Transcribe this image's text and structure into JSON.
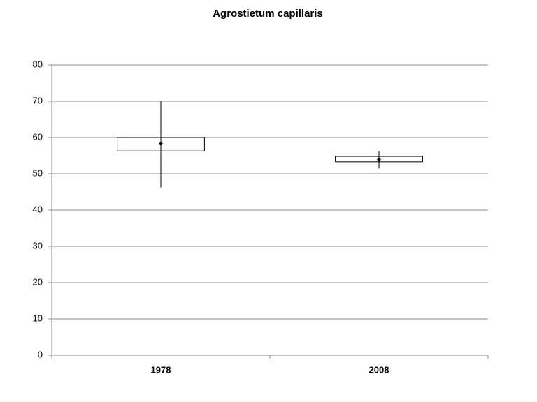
{
  "chart_data": {
    "type": "box",
    "title": "Agrostietum capillaris",
    "categories": [
      "1978",
      "2008"
    ],
    "min": [
      46.2,
      51.5
    ],
    "q1": [
      56.3,
      53.3
    ],
    "mean": [
      58.3,
      54.0
    ],
    "q3": [
      60,
      54.8
    ],
    "max": [
      70,
      56.2
    ],
    "color": "#000000",
    "ylim": [
      0,
      80
    ],
    "yticks": [
      0,
      10,
      20,
      30,
      40,
      50,
      60,
      70,
      80
    ],
    "grid": true
  }
}
